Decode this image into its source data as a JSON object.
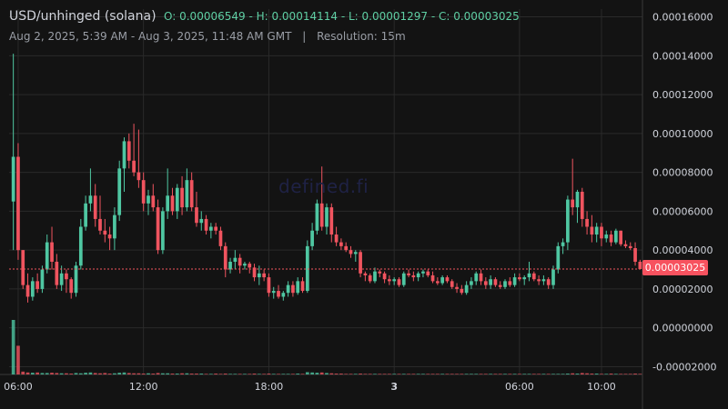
{
  "header": {
    "title": "USD/unhinged (solana)",
    "ohlc": "O: 0.00006549 - H: 0.00014114 - L: 0.00001297 - C: 0.00003025",
    "date_range": "Aug 2, 2025, 5:39 AM - Aug 3, 2025, 11:48 AM GMT",
    "separator": "|",
    "resolution": "Resolution: 15m"
  },
  "watermark": "defined.fi",
  "last_price_label": "0.00003025",
  "colors": {
    "up": "#4fc7a2",
    "down": "#f0545f",
    "background": "#131313",
    "grid": "#2a2a2a",
    "price_line": "#f0545f"
  },
  "chart_data": {
    "type": "candlestick",
    "title": "USD/unhinged (solana)",
    "ylim": [
      -2.4e-05,
      0.000164
    ],
    "y_ticks": [
      "0.00016000",
      "0.00014000",
      "0.00012000",
      "0.00010000",
      "0.00008000",
      "0.00006000",
      "0.00004000",
      "0.00002000",
      "0.00000000",
      "-0.00002000"
    ],
    "y_tick_values": [
      0.00016,
      0.00014,
      0.00012,
      0.0001,
      8e-05,
      6e-05,
      4e-05,
      2e-05,
      0,
      -2e-05
    ],
    "x_ticks": [
      "06:00",
      "12:00",
      "18:00",
      "3",
      "06:00",
      "10:00"
    ],
    "x_tick_index": [
      1,
      27,
      53,
      79,
      105,
      122
    ],
    "grid": true,
    "last_price": 3.025e-05,
    "candles": [
      {
        "o": 6.5e-05,
        "h": 0.000141,
        "l": 4e-05,
        "c": 8.8e-05
      },
      {
        "o": 8.8e-05,
        "h": 9.5e-05,
        "l": 3.5e-05,
        "c": 4e-05
      },
      {
        "o": 4e-05,
        "h": 4e-05,
        "l": 2e-05,
        "c": 2.2e-05
      },
      {
        "o": 2.2e-05,
        "h": 2.8e-05,
        "l": 1.3e-05,
        "c": 1.6e-05
      },
      {
        "o": 1.6e-05,
        "h": 2.6e-05,
        "l": 1.4e-05,
        "c": 2.4e-05
      },
      {
        "o": 2.4e-05,
        "h": 2.8e-05,
        "l": 1.8e-05,
        "c": 2e-05
      },
      {
        "o": 2e-05,
        "h": 3.2e-05,
        "l": 1.8e-05,
        "c": 3e-05
      },
      {
        "o": 3e-05,
        "h": 4.8e-05,
        "l": 2.8e-05,
        "c": 4.4e-05
      },
      {
        "o": 4.4e-05,
        "h": 5.2e-05,
        "l": 3e-05,
        "c": 3.4e-05
      },
      {
        "o": 3.4e-05,
        "h": 3.8e-05,
        "l": 2e-05,
        "c": 2.2e-05
      },
      {
        "o": 2.2e-05,
        "h": 3.2e-05,
        "l": 1.9e-05,
        "c": 2.8e-05
      },
      {
        "o": 2.8e-05,
        "h": 3e-05,
        "l": 1.8e-05,
        "c": 2.5e-05
      },
      {
        "o": 2.5e-05,
        "h": 2.6e-05,
        "l": 1.5e-05,
        "c": 1.8e-05
      },
      {
        "o": 1.8e-05,
        "h": 3.4e-05,
        "l": 1.6e-05,
        "c": 3.2e-05
      },
      {
        "o": 3.2e-05,
        "h": 5.6e-05,
        "l": 3e-05,
        "c": 5.2e-05
      },
      {
        "o": 5.2e-05,
        "h": 6.8e-05,
        "l": 5e-05,
        "c": 6.4e-05
      },
      {
        "o": 6.4e-05,
        "h": 8.2e-05,
        "l": 6e-05,
        "c": 6.8e-05
      },
      {
        "o": 6.8e-05,
        "h": 7.4e-05,
        "l": 5.2e-05,
        "c": 5.6e-05
      },
      {
        "o": 5.6e-05,
        "h": 6.8e-05,
        "l": 4.8e-05,
        "c": 5e-05
      },
      {
        "o": 5e-05,
        "h": 5.6e-05,
        "l": 4.4e-05,
        "c": 4.8e-05
      },
      {
        "o": 4.8e-05,
        "h": 5.2e-05,
        "l": 4e-05,
        "c": 4.6e-05
      },
      {
        "o": 4.6e-05,
        "h": 6.2e-05,
        "l": 4e-05,
        "c": 5.8e-05
      },
      {
        "o": 5.8e-05,
        "h": 8.6e-05,
        "l": 5.5e-05,
        "c": 8.2e-05
      },
      {
        "o": 8.2e-05,
        "h": 9.8e-05,
        "l": 7e-05,
        "c": 9.6e-05
      },
      {
        "o": 9.6e-05,
        "h": 0.0001,
        "l": 8.2e-05,
        "c": 8.6e-05
      },
      {
        "o": 8.6e-05,
        "h": 0.000105,
        "l": 7.8e-05,
        "c": 8e-05
      },
      {
        "o": 8e-05,
        "h": 0.000102,
        "l": 7.2e-05,
        "c": 7.6e-05
      },
      {
        "o": 7.6e-05,
        "h": 8e-05,
        "l": 6e-05,
        "c": 6.4e-05
      },
      {
        "o": 6.4e-05,
        "h": 7.1e-05,
        "l": 5.8e-05,
        "c": 6.8e-05
      },
      {
        "o": 6.8e-05,
        "h": 7.4e-05,
        "l": 6e-05,
        "c": 6.2e-05
      },
      {
        "o": 6.2e-05,
        "h": 6.6e-05,
        "l": 3.8e-05,
        "c": 4e-05
      },
      {
        "o": 4e-05,
        "h": 6.2e-05,
        "l": 3.8e-05,
        "c": 6e-05
      },
      {
        "o": 6e-05,
        "h": 8.2e-05,
        "l": 5.6e-05,
        "c": 6.8e-05
      },
      {
        "o": 6.8e-05,
        "h": 7.2e-05,
        "l": 5.8e-05,
        "c": 6e-05
      },
      {
        "o": 6e-05,
        "h": 7.4e-05,
        "l": 5.6e-05,
        "c": 7.2e-05
      },
      {
        "o": 7.2e-05,
        "h": 7.8e-05,
        "l": 5.8e-05,
        "c": 6.2e-05
      },
      {
        "o": 6.2e-05,
        "h": 8.2e-05,
        "l": 6e-05,
        "c": 7.6e-05
      },
      {
        "o": 7.6e-05,
        "h": 8e-05,
        "l": 6e-05,
        "c": 6.2e-05
      },
      {
        "o": 6.2e-05,
        "h": 7e-05,
        "l": 5.2e-05,
        "c": 5.4e-05
      },
      {
        "o": 5.4e-05,
        "h": 6e-05,
        "l": 5e-05,
        "c": 5.6e-05
      },
      {
        "o": 5.6e-05,
        "h": 5.8e-05,
        "l": 4.8e-05,
        "c": 5e-05
      },
      {
        "o": 5e-05,
        "h": 5.4e-05,
        "l": 4.6e-05,
        "c": 5.2e-05
      },
      {
        "o": 5.2e-05,
        "h": 5.4e-05,
        "l": 4.8e-05,
        "c": 5e-05
      },
      {
        "o": 5e-05,
        "h": 5.2e-05,
        "l": 4e-05,
        "c": 4.2e-05
      },
      {
        "o": 4.2e-05,
        "h": 4.4e-05,
        "l": 2.6e-05,
        "c": 3e-05
      },
      {
        "o": 3e-05,
        "h": 3.6e-05,
        "l": 2.8e-05,
        "c": 3.4e-05
      },
      {
        "o": 3.4e-05,
        "h": 4e-05,
        "l": 3e-05,
        "c": 3.6e-05
      },
      {
        "o": 3.6e-05,
        "h": 3.8e-05,
        "l": 2.8e-05,
        "c": 3.2e-05
      },
      {
        "o": 3.2e-05,
        "h": 3.4e-05,
        "l": 3e-05,
        "c": 3.3e-05
      },
      {
        "o": 3.3e-05,
        "h": 3.4e-05,
        "l": 2.8e-05,
        "c": 3.1e-05
      },
      {
        "o": 3.1e-05,
        "h": 3.3e-05,
        "l": 2.4e-05,
        "c": 2.6e-05
      },
      {
        "o": 2.6e-05,
        "h": 3.2e-05,
        "l": 2.2e-05,
        "c": 2.8e-05
      },
      {
        "o": 2.8e-05,
        "h": 3e-05,
        "l": 2.4e-05,
        "c": 2.6e-05
      },
      {
        "o": 2.6e-05,
        "h": 2.8e-05,
        "l": 1.6e-05,
        "c": 1.8e-05
      },
      {
        "o": 1.8e-05,
        "h": 2.1e-05,
        "l": 1.5e-05,
        "c": 1.9e-05
      },
      {
        "o": 1.9e-05,
        "h": 2.2e-05,
        "l": 1.5e-05,
        "c": 1.6e-05
      },
      {
        "o": 1.6e-05,
        "h": 1.9e-05,
        "l": 1.4e-05,
        "c": 1.8e-05
      },
      {
        "o": 1.8e-05,
        "h": 2.4e-05,
        "l": 1.6e-05,
        "c": 2.2e-05
      },
      {
        "o": 2.2e-05,
        "h": 2.4e-05,
        "l": 1.6e-05,
        "c": 1.8e-05
      },
      {
        "o": 1.8e-05,
        "h": 2.6e-05,
        "l": 1.7e-05,
        "c": 2.4e-05
      },
      {
        "o": 2.4e-05,
        "h": 2.6e-05,
        "l": 1.8e-05,
        "c": 1.9e-05
      },
      {
        "o": 1.9e-05,
        "h": 4.5e-05,
        "l": 1.8e-05,
        "c": 4.2e-05
      },
      {
        "o": 4.2e-05,
        "h": 5.4e-05,
        "l": 4e-05,
        "c": 5e-05
      },
      {
        "o": 5e-05,
        "h": 6.6e-05,
        "l": 4.8e-05,
        "c": 6.4e-05
      },
      {
        "o": 6.4e-05,
        "h": 8.3e-05,
        "l": 5e-05,
        "c": 5.2e-05
      },
      {
        "o": 5.2e-05,
        "h": 6.4e-05,
        "l": 4.8e-05,
        "c": 6.2e-05
      },
      {
        "o": 6.2e-05,
        "h": 6.4e-05,
        "l": 4.4e-05,
        "c": 4.8e-05
      },
      {
        "o": 4.8e-05,
        "h": 5.2e-05,
        "l": 4.2e-05,
        "c": 4.4e-05
      },
      {
        "o": 4.4e-05,
        "h": 4.6e-05,
        "l": 4e-05,
        "c": 4.2e-05
      },
      {
        "o": 4.2e-05,
        "h": 4.4e-05,
        "l": 3.9e-05,
        "c": 4e-05
      },
      {
        "o": 4e-05,
        "h": 4.2e-05,
        "l": 3.6e-05,
        "c": 3.8e-05
      },
      {
        "o": 3.8e-05,
        "h": 4e-05,
        "l": 3.4e-05,
        "c": 3.9e-05
      },
      {
        "o": 3.9e-05,
        "h": 4e-05,
        "l": 2.6e-05,
        "c": 2.8e-05
      },
      {
        "o": 2.8e-05,
        "h": 2.9e-05,
        "l": 2.4e-05,
        "c": 2.7e-05
      },
      {
        "o": 2.7e-05,
        "h": 2.8e-05,
        "l": 2.3e-05,
        "c": 2.4e-05
      },
      {
        "o": 2.4e-05,
        "h": 3.1e-05,
        "l": 2.3e-05,
        "c": 2.9e-05
      },
      {
        "o": 2.9e-05,
        "h": 3e-05,
        "l": 2.6e-05,
        "c": 2.8e-05
      },
      {
        "o": 2.8e-05,
        "h": 2.9e-05,
        "l": 2.3e-05,
        "c": 2.5e-05
      },
      {
        "o": 2.5e-05,
        "h": 2.7e-05,
        "l": 2.2e-05,
        "c": 2.4e-05
      },
      {
        "o": 2.4e-05,
        "h": 2.6e-05,
        "l": 2.2e-05,
        "c": 2.5e-05
      },
      {
        "o": 2.5e-05,
        "h": 2.6e-05,
        "l": 2.1e-05,
        "c": 2.2e-05
      },
      {
        "o": 2.2e-05,
        "h": 2.9e-05,
        "l": 2.1e-05,
        "c": 2.8e-05
      },
      {
        "o": 2.8e-05,
        "h": 3e-05,
        "l": 2.6e-05,
        "c": 2.7e-05
      },
      {
        "o": 2.7e-05,
        "h": 2.9e-05,
        "l": 2.4e-05,
        "c": 2.6e-05
      },
      {
        "o": 2.6e-05,
        "h": 2.9e-05,
        "l": 2.4e-05,
        "c": 2.8e-05
      },
      {
        "o": 2.8e-05,
        "h": 3e-05,
        "l": 2.6e-05,
        "c": 2.9e-05
      },
      {
        "o": 2.9e-05,
        "h": 3e-05,
        "l": 2.6e-05,
        "c": 2.7e-05
      },
      {
        "o": 2.7e-05,
        "h": 2.9e-05,
        "l": 2.3e-05,
        "c": 2.4e-05
      },
      {
        "o": 2.4e-05,
        "h": 2.6e-05,
        "l": 2.2e-05,
        "c": 2.3e-05
      },
      {
        "o": 2.3e-05,
        "h": 2.7e-05,
        "l": 2.2e-05,
        "c": 2.6e-05
      },
      {
        "o": 2.6e-05,
        "h": 2.7e-05,
        "l": 2.3e-05,
        "c": 2.4e-05
      },
      {
        "o": 2.4e-05,
        "h": 2.5e-05,
        "l": 2e-05,
        "c": 2.1e-05
      },
      {
        "o": 2.1e-05,
        "h": 2.3e-05,
        "l": 1.8e-05,
        "c": 2e-05
      },
      {
        "o": 2e-05,
        "h": 2.2e-05,
        "l": 1.7e-05,
        "c": 1.8e-05
      },
      {
        "o": 1.8e-05,
        "h": 2.4e-05,
        "l": 1.7e-05,
        "c": 2.2e-05
      },
      {
        "o": 2.2e-05,
        "h": 2.6e-05,
        "l": 2e-05,
        "c": 2.4e-05
      },
      {
        "o": 2.4e-05,
        "h": 2.9e-05,
        "l": 2.2e-05,
        "c": 2.8e-05
      },
      {
        "o": 2.8e-05,
        "h": 3e-05,
        "l": 2.2e-05,
        "c": 2.4e-05
      },
      {
        "o": 2.4e-05,
        "h": 2.6e-05,
        "l": 2e-05,
        "c": 2.2e-05
      },
      {
        "o": 2.2e-05,
        "h": 2.7e-05,
        "l": 2e-05,
        "c": 2.5e-05
      },
      {
        "o": 2.5e-05,
        "h": 2.6e-05,
        "l": 2.1e-05,
        "c": 2.2e-05
      },
      {
        "o": 2.2e-05,
        "h": 2.4e-05,
        "l": 2e-05,
        "c": 2.1e-05
      },
      {
        "o": 2.1e-05,
        "h": 2.5e-05,
        "l": 2e-05,
        "c": 2.4e-05
      },
      {
        "o": 2.4e-05,
        "h": 2.6e-05,
        "l": 2.1e-05,
        "c": 2.2e-05
      },
      {
        "o": 2.2e-05,
        "h": 2.8e-05,
        "l": 2.1e-05,
        "c": 2.6e-05
      },
      {
        "o": 2.6e-05,
        "h": 2.8e-05,
        "l": 2.4e-05,
        "c": 2.5e-05
      },
      {
        "o": 2.5e-05,
        "h": 2.7e-05,
        "l": 2.2e-05,
        "c": 2.6e-05
      },
      {
        "o": 2.6e-05,
        "h": 3.4e-05,
        "l": 2.4e-05,
        "c": 2.8e-05
      },
      {
        "o": 2.8e-05,
        "h": 2.9e-05,
        "l": 2.4e-05,
        "c": 2.5e-05
      },
      {
        "o": 2.5e-05,
        "h": 2.7e-05,
        "l": 2.2e-05,
        "c": 2.4e-05
      },
      {
        "o": 2.4e-05,
        "h": 2.7e-05,
        "l": 2.2e-05,
        "c": 2.5e-05
      },
      {
        "o": 2.5e-05,
        "h": 2.6e-05,
        "l": 2e-05,
        "c": 2.2e-05
      },
      {
        "o": 2.2e-05,
        "h": 3.2e-05,
        "l": 2e-05,
        "c": 3e-05
      },
      {
        "o": 3e-05,
        "h": 4.4e-05,
        "l": 2.8e-05,
        "c": 4.2e-05
      },
      {
        "o": 4.2e-05,
        "h": 4.6e-05,
        "l": 3.8e-05,
        "c": 4.4e-05
      },
      {
        "o": 4.4e-05,
        "h": 6.8e-05,
        "l": 4e-05,
        "c": 6.6e-05
      },
      {
        "o": 6.6e-05,
        "h": 8.7e-05,
        "l": 5.8e-05,
        "c": 6.2e-05
      },
      {
        "o": 6.2e-05,
        "h": 7.1e-05,
        "l": 5.4e-05,
        "c": 7e-05
      },
      {
        "o": 7e-05,
        "h": 7.2e-05,
        "l": 5.2e-05,
        "c": 5.6e-05
      },
      {
        "o": 5.6e-05,
        "h": 6e-05,
        "l": 4.8e-05,
        "c": 5.2e-05
      },
      {
        "o": 5.2e-05,
        "h": 5.8e-05,
        "l": 4.4e-05,
        "c": 4.8e-05
      },
      {
        "o": 4.8e-05,
        "h": 5.4e-05,
        "l": 4.4e-05,
        "c": 5.2e-05
      },
      {
        "o": 5.2e-05,
        "h": 5.4e-05,
        "l": 4.2e-05,
        "c": 4.6e-05
      },
      {
        "o": 4.6e-05,
        "h": 5e-05,
        "l": 4.4e-05,
        "c": 4.8e-05
      },
      {
        "o": 4.8e-05,
        "h": 5e-05,
        "l": 4.2e-05,
        "c": 4.4e-05
      },
      {
        "o": 4.4e-05,
        "h": 5.1e-05,
        "l": 4.3e-05,
        "c": 5e-05
      },
      {
        "o": 5e-05,
        "h": 5e-05,
        "l": 4.2e-05,
        "c": 4.3e-05
      },
      {
        "o": 4.3e-05,
        "h": 4.5e-05,
        "l": 4.1e-05,
        "c": 4.2e-05
      },
      {
        "o": 4.2e-05,
        "h": 4.4e-05,
        "l": 4e-05,
        "c": 4.1e-05
      },
      {
        "o": 4.1e-05,
        "h": 4.4e-05,
        "l": 3.2e-05,
        "c": 3.4e-05
      },
      {
        "o": 3.4e-05,
        "h": 3.5e-05,
        "l": 3e-05,
        "c": 3.025e-05
      }
    ],
    "volume": [
      0.95,
      0.5,
      0.05,
      0.035,
      0.03,
      0.035,
      0.025,
      0.025,
      0.03,
      0.025,
      0.02,
      0.02,
      0.015,
      0.025,
      0.02,
      0.03,
      0.035,
      0.025,
      0.02,
      0.025,
      0.015,
      0.02,
      0.03,
      0.035,
      0.025,
      0.02,
      0.02,
      0.015,
      0.02,
      0.015,
      0.025,
      0.02,
      0.02,
      0.015,
      0.015,
      0.02,
      0.02,
      0.015,
      0.015,
      0.015,
      0.01,
      0.01,
      0.015,
      0.01,
      0.015,
      0.01,
      0.01,
      0.01,
      0.01,
      0.01,
      0.015,
      0.01,
      0.01,
      0.015,
      0.01,
      0.01,
      0.01,
      0.01,
      0.01,
      0.015,
      0.01,
      0.04,
      0.035,
      0.03,
      0.035,
      0.025,
      0.02,
      0.015,
      0.015,
      0.01,
      0.01,
      0.01,
      0.015,
      0.01,
      0.01,
      0.01,
      0.01,
      0.01,
      0.01,
      0.01,
      0.01,
      0.01,
      0.01,
      0.01,
      0.01,
      0.01,
      0.01,
      0.01,
      0.01,
      0.01,
      0.01,
      0.01,
      0.01,
      0.01,
      0.01,
      0.01,
      0.01,
      0.01,
      0.01,
      0.01,
      0.01,
      0.01,
      0.01,
      0.01,
      0.01,
      0.01,
      0.01,
      0.01,
      0.01,
      0.01,
      0.01,
      0.01,
      0.01,
      0.01,
      0.01,
      0.015,
      0.02,
      0.015,
      0.025,
      0.02,
      0.015,
      0.015,
      0.01,
      0.01,
      0.015,
      0.01,
      0.01,
      0.01,
      0.01,
      0.015,
      0.01
    ]
  }
}
